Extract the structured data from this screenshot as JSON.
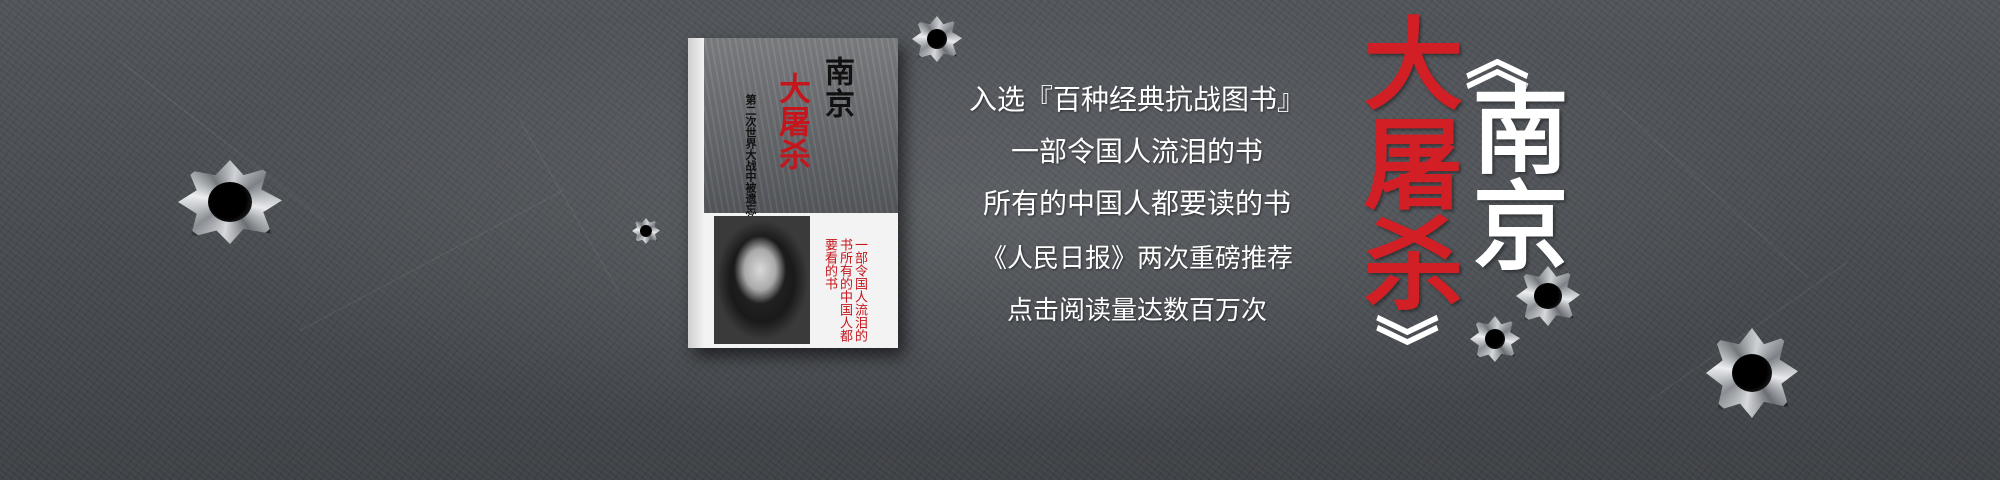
{
  "book": {
    "title_main": "南京",
    "title_red": "大屠杀",
    "subtitle": "第二次世界大战中被遗忘的大浩劫",
    "quote": "一部令国人流泪的书所有的中国人都要看的书"
  },
  "promo": {
    "line1": "入选『百种经典抗战图书』",
    "line2": "一部令国人流泪的书",
    "line3": "所有的中国人都要读的书",
    "line4": "《人民日报》两次重磅推荐",
    "line5": "点击阅读量达数百万次"
  },
  "title": {
    "open_bracket": "《",
    "part1": "南京",
    "part2": "大屠杀",
    "close_bracket": "》"
  },
  "colors": {
    "accent_red": "#d11f25",
    "background": "#45494e"
  },
  "icons": [
    "bullet-hole-icon"
  ]
}
